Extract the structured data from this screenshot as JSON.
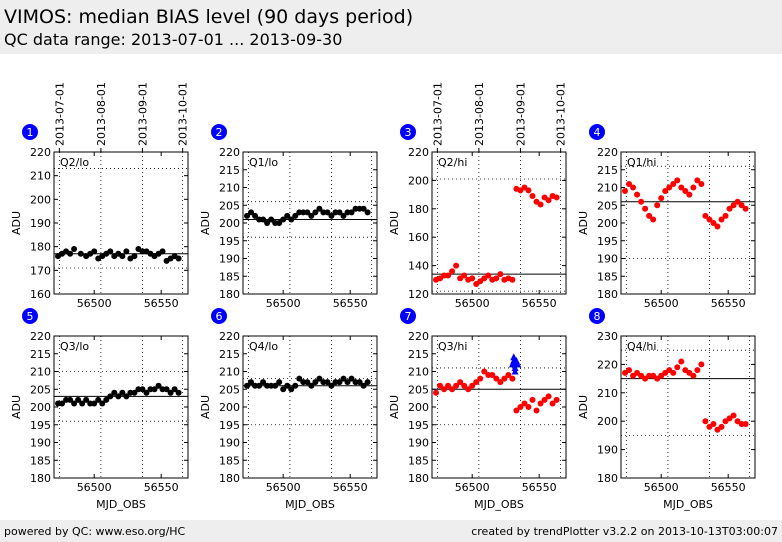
{
  "header": {
    "title": "VIMOS: median BIAS level (90 days period)",
    "subtitle": "QC data range: 2013-07-01 ... 2013-09-30"
  },
  "footer": {
    "left": "powered by QC: www.eso.org/HC",
    "right": "created by trendPlotter v3.2.2 on 2013-10-13T03:00:07"
  },
  "colors": {
    "black_series": "#000000",
    "red_series": "#ff0000",
    "blue_series": "#0000ff",
    "badge": "#0000ff"
  },
  "chart_data": {
    "date_ticks": [
      "2013-07-01",
      "2013-08-01",
      "2013-09-01",
      "2013-10-01"
    ],
    "date_tick_mjd": [
      56474,
      56505,
      56536,
      56566
    ],
    "xlabel": "MJD_OBS",
    "ylabel": "ADU",
    "xlim": [
      56470,
      56570
    ],
    "xticks": [
      56500,
      56550
    ],
    "panels": [
      {
        "badge": "1",
        "label": "Q2/lo",
        "type": "scatter",
        "ylim": [
          160,
          220
        ],
        "yticks": [
          160,
          170,
          180,
          190,
          200,
          210,
          220
        ],
        "ref_line": 177,
        "dotted": [
          171,
          213
        ],
        "series": [
          {
            "color": "black",
            "x": [
              56473,
              56476,
              56479,
              56482,
              56485,
              56490,
              56494,
              56497,
              56500,
              56503,
              56506,
              56509,
              56512,
              56515,
              56518,
              56521,
              56524,
              56527,
              56530,
              56533,
              56536,
              56539,
              56542,
              56545,
              56548,
              56551,
              56554,
              56557,
              56560,
              56563
            ],
            "y": [
              176,
              177,
              178,
              177,
              179,
              177,
              176,
              177,
              178,
              175,
              176,
              177,
              178,
              176,
              177,
              176,
              178,
              175,
              176,
              179,
              178,
              178,
              177,
              176,
              177,
              178,
              174,
              175,
              176,
              175
            ]
          }
        ]
      },
      {
        "badge": "2",
        "label": "Q1/lo",
        "type": "scatter",
        "ylim": [
          180,
          220
        ],
        "yticks": [
          180,
          185,
          190,
          195,
          200,
          205,
          210,
          215,
          220
        ],
        "ref_line": 201,
        "dotted": [
          196,
          206
        ],
        "series": [
          {
            "color": "black",
            "x": [
              56473,
              56476,
              56479,
              56482,
              56485,
              56488,
              56491,
              56494,
              56497,
              56500,
              56503,
              56506,
              56509,
              56512,
              56515,
              56518,
              56521,
              56524,
              56527,
              56530,
              56533,
              56536,
              56539,
              56542,
              56545,
              56548,
              56551,
              56554,
              56557,
              56560,
              56563
            ],
            "y": [
              202,
              203,
              202,
              201,
              201,
              200,
              201,
              200,
              200,
              201,
              202,
              201,
              202,
              203,
              203,
              203,
              202,
              203,
              204,
              203,
              203,
              202,
              203,
              203,
              202,
              203,
              203,
              204,
              204,
              204,
              203
            ]
          }
        ]
      },
      {
        "badge": "3",
        "label": "Q2/hi",
        "type": "scatter",
        "ylim": [
          120,
          220
        ],
        "yticks": [
          120,
          140,
          160,
          180,
          200,
          220
        ],
        "ref_line": 134,
        "dotted": [
          122,
          201
        ],
        "series": [
          {
            "color": "red",
            "x": [
              56473,
              56476,
              56479,
              56482,
              56485,
              56488,
              56491,
              56494,
              56497,
              56500,
              56503,
              56506,
              56509,
              56512,
              56515,
              56518,
              56521,
              56524,
              56527,
              56530,
              56533,
              56536,
              56539,
              56542,
              56545,
              56548,
              56551,
              56554,
              56557,
              56560,
              56563
            ],
            "y": [
              130,
              131,
              133,
              133,
              136,
              140,
              131,
              133,
              130,
              131,
              127,
              129,
              131,
              133,
              130,
              131,
              134,
              130,
              131,
              130,
              194,
              193,
              195,
              193,
              189,
              185,
              183,
              188,
              186,
              189,
              188
            ]
          }
        ]
      },
      {
        "badge": "4",
        "label": "Q1/hi",
        "type": "scatter",
        "ylim": [
          180,
          220
        ],
        "yticks": [
          180,
          185,
          190,
          195,
          200,
          205,
          210,
          215,
          220
        ],
        "ref_line": 206,
        "dotted": [
          190,
          216
        ],
        "series": [
          {
            "color": "red",
            "x": [
              56473,
              56476,
              56479,
              56482,
              56485,
              56488,
              56491,
              56494,
              56497,
              56500,
              56503,
              56506,
              56509,
              56512,
              56515,
              56518,
              56521,
              56524,
              56527,
              56530,
              56533,
              56536,
              56539,
              56542,
              56545,
              56548,
              56551,
              56554,
              56557,
              56560,
              56563
            ],
            "y": [
              209,
              211,
              210,
              208,
              206,
              204,
              202,
              201,
              205,
              207,
              209,
              210,
              211,
              212,
              210,
              209,
              208,
              210,
              212,
              211,
              202,
              201,
              200,
              199,
              201,
              202,
              204,
              205,
              206,
              205,
              204
            ]
          }
        ]
      },
      {
        "badge": "5",
        "label": "Q3/lo",
        "type": "scatter",
        "ylim": [
          180,
          220
        ],
        "yticks": [
          180,
          185,
          190,
          195,
          200,
          205,
          210,
          215,
          220
        ],
        "ref_line": 203,
        "dotted": [
          196,
          210
        ],
        "series": [
          {
            "color": "black",
            "x": [
              56473,
              56476,
              56479,
              56482,
              56485,
              56488,
              56491,
              56494,
              56497,
              56500,
              56503,
              56506,
              56509,
              56512,
              56515,
              56518,
              56521,
              56524,
              56527,
              56530,
              56533,
              56536,
              56539,
              56542,
              56545,
              56548,
              56551,
              56554,
              56557,
              56560,
              56563
            ],
            "y": [
              201,
              201,
              202,
              202,
              201,
              202,
              201,
              202,
              201,
              201,
              202,
              201,
              202,
              203,
              204,
              203,
              204,
              203,
              204,
              204,
              205,
              205,
              204,
              205,
              205,
              206,
              205,
              205,
              204,
              205,
              204
            ]
          }
        ]
      },
      {
        "badge": "6",
        "label": "Q4/lo",
        "type": "scatter",
        "ylim": [
          180,
          220
        ],
        "yticks": [
          180,
          185,
          190,
          195,
          200,
          205,
          210,
          215,
          220
        ],
        "ref_line": 206,
        "dotted": [
          195,
          208
        ],
        "series": [
          {
            "color": "black",
            "x": [
              56473,
              56476,
              56479,
              56482,
              56485,
              56488,
              56491,
              56494,
              56497,
              56500,
              56503,
              56506,
              56509,
              56512,
              56515,
              56518,
              56521,
              56524,
              56527,
              56530,
              56533,
              56536,
              56539,
              56542,
              56545,
              56548,
              56551,
              56554,
              56557,
              56560,
              56563
            ],
            "y": [
              206,
              207,
              206,
              206,
              207,
              206,
              206,
              206,
              207,
              205,
              206,
              205,
              206,
              208,
              207,
              207,
              206,
              207,
              208,
              207,
              207,
              206,
              207,
              207,
              208,
              207,
              208,
              207,
              207,
              206,
              207
            ]
          }
        ]
      },
      {
        "badge": "7",
        "label": "Q3/hi",
        "type": "scatter",
        "ylim": [
          180,
          220
        ],
        "yticks": [
          180,
          185,
          190,
          195,
          200,
          205,
          210,
          215,
          220
        ],
        "ref_line": 205,
        "dotted": [
          195,
          211
        ],
        "series": [
          {
            "color": "red",
            "x": [
              56473,
              56476,
              56479,
              56482,
              56485,
              56488,
              56491,
              56494,
              56497,
              56500,
              56503,
              56506,
              56509,
              56512,
              56515,
              56518,
              56521,
              56524,
              56527,
              56530,
              56533,
              56536,
              56539,
              56542,
              56545,
              56548,
              56551,
              56554,
              56557,
              56560,
              56563
            ],
            "y": [
              204,
              206,
              205,
              206,
              205,
              206,
              207,
              206,
              205,
              206,
              207,
              208,
              210,
              209,
              209,
              208,
              207,
              208,
              209,
              208,
              199,
              200,
              201,
              200,
              202,
              199,
              201,
              202,
              203,
              201,
              202
            ]
          },
          {
            "color": "blue",
            "x": [
              56530,
              56531,
              56532,
              56533,
              56534,
              56531,
              56533,
              56532
            ],
            "y": [
              212,
              213,
              211,
              212,
              212,
              214,
              213,
              210
            ]
          }
        ]
      },
      {
        "badge": "8",
        "label": "Q4/hi",
        "type": "scatter",
        "ylim": [
          180,
          230
        ],
        "yticks": [
          180,
          190,
          200,
          210,
          220,
          230
        ],
        "ref_line": 215,
        "dotted": [
          195,
          225
        ],
        "series": [
          {
            "color": "red",
            "x": [
              56473,
              56476,
              56479,
              56482,
              56485,
              56488,
              56491,
              56494,
              56497,
              56500,
              56503,
              56506,
              56509,
              56512,
              56515,
              56518,
              56521,
              56524,
              56527,
              56530,
              56533,
              56536,
              56539,
              56542,
              56545,
              56548,
              56551,
              56554,
              56557,
              56560,
              56563
            ],
            "y": [
              217,
              218,
              216,
              217,
              216,
              215,
              216,
              216,
              215,
              216,
              217,
              218,
              217,
              219,
              221,
              218,
              217,
              216,
              218,
              220,
              200,
              198,
              199,
              197,
              198,
              200,
              201,
              202,
              200,
              199,
              199
            ]
          }
        ]
      }
    ]
  }
}
